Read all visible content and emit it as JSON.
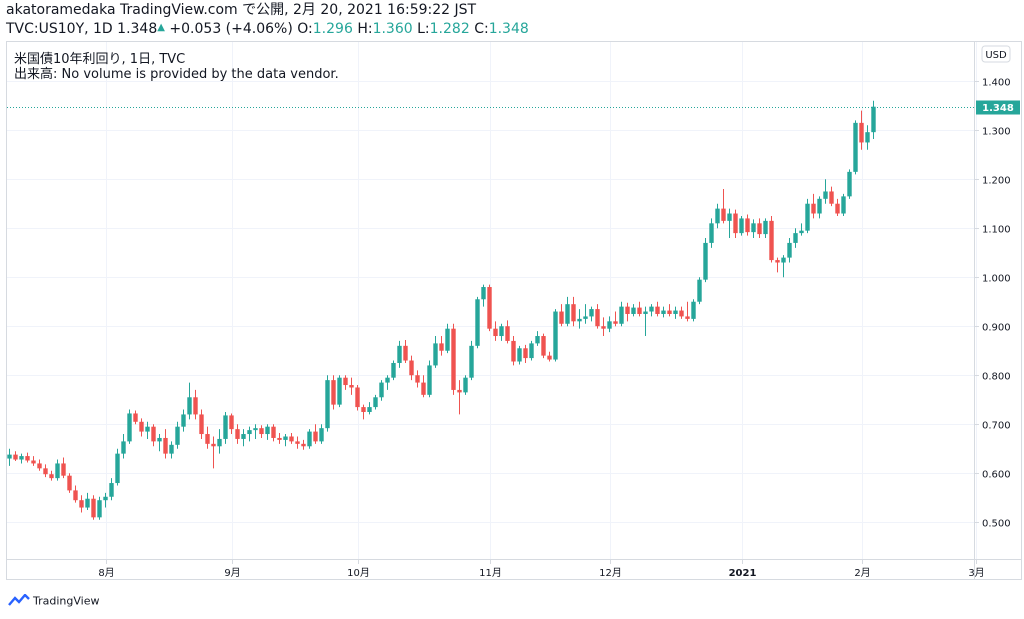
{
  "header": {
    "line1": "akatoramedaka TradingView.com で公開, 2月 20, 2021 16:59:22 JST",
    "symbol": "TVC:US10Y, 1D",
    "last": "1.348",
    "up_arrow": "▲",
    "change": "+0.053 (+4.06%)",
    "o_label": "O:",
    "o": "1.296",
    "h_label": "H:",
    "h": "1.360",
    "l_label": "L:",
    "l": "1.282",
    "c_label": "C:",
    "c": "1.348"
  },
  "legend": {
    "title": "米国債10年利回り, 1日, TVC",
    "volume": "出来高: No volume is provided by the data vendor."
  },
  "currency_button": "USD",
  "price_tag": "1.348",
  "brand": "TradingView",
  "colors": {
    "up": "#26a69a",
    "down": "#ef5350",
    "grid": "#f0f3fa",
    "axis": "#d6dae0"
  },
  "chart_data": {
    "type": "candlestick",
    "y_ticks": [
      "1.400",
      "1.300",
      "1.200",
      "1.100",
      "1.000",
      "0.900",
      "0.800",
      "0.700",
      "0.600",
      "0.500"
    ],
    "ylim": [
      0.425,
      1.48
    ],
    "last_price": 1.348,
    "x_ticks": [
      {
        "label": "8月",
        "idx": 16
      },
      {
        "label": "9月",
        "idx": 37
      },
      {
        "label": "10月",
        "idx": 58
      },
      {
        "label": "11月",
        "idx": 80
      },
      {
        "label": "12月",
        "idx": 100
      },
      {
        "label": "2021",
        "idx": 122,
        "bold": true
      },
      {
        "label": "2月",
        "idx": 142
      },
      {
        "label": "3月",
        "idx": 161
      }
    ],
    "candles": [
      [
        0.63,
        0.65,
        0.615,
        0.638
      ],
      [
        0.638,
        0.645,
        0.625,
        0.628
      ],
      [
        0.628,
        0.64,
        0.62,
        0.635
      ],
      [
        0.635,
        0.642,
        0.622,
        0.626
      ],
      [
        0.626,
        0.635,
        0.615,
        0.62
      ],
      [
        0.62,
        0.628,
        0.605,
        0.61
      ],
      [
        0.61,
        0.618,
        0.592,
        0.598
      ],
      [
        0.598,
        0.605,
        0.585,
        0.59
      ],
      [
        0.59,
        0.628,
        0.585,
        0.62
      ],
      [
        0.62,
        0.632,
        0.59,
        0.595
      ],
      [
        0.595,
        0.6,
        0.56,
        0.565
      ],
      [
        0.565,
        0.575,
        0.54,
        0.545
      ],
      [
        0.545,
        0.555,
        0.52,
        0.53
      ],
      [
        0.53,
        0.56,
        0.525,
        0.548
      ],
      [
        0.548,
        0.555,
        0.505,
        0.51
      ],
      [
        0.51,
        0.552,
        0.505,
        0.545
      ],
      [
        0.545,
        0.56,
        0.53,
        0.552
      ],
      [
        0.552,
        0.59,
        0.545,
        0.58
      ],
      [
        0.58,
        0.65,
        0.575,
        0.64
      ],
      [
        0.64,
        0.68,
        0.63,
        0.665
      ],
      [
        0.665,
        0.73,
        0.66,
        0.722
      ],
      [
        0.722,
        0.728,
        0.7,
        0.705
      ],
      [
        0.705,
        0.712,
        0.675,
        0.685
      ],
      [
        0.685,
        0.705,
        0.67,
        0.695
      ],
      [
        0.695,
        0.7,
        0.655,
        0.665
      ],
      [
        0.665,
        0.68,
        0.645,
        0.672
      ],
      [
        0.672,
        0.69,
        0.63,
        0.64
      ],
      [
        0.64,
        0.665,
        0.63,
        0.658
      ],
      [
        0.658,
        0.705,
        0.65,
        0.695
      ],
      [
        0.695,
        0.73,
        0.685,
        0.72
      ],
      [
        0.72,
        0.785,
        0.71,
        0.755
      ],
      [
        0.755,
        0.77,
        0.71,
        0.72
      ],
      [
        0.72,
        0.73,
        0.67,
        0.68
      ],
      [
        0.68,
        0.695,
        0.65,
        0.66
      ],
      [
        0.66,
        0.675,
        0.61,
        0.655
      ],
      [
        0.655,
        0.69,
        0.64,
        0.67
      ],
      [
        0.67,
        0.725,
        0.66,
        0.718
      ],
      [
        0.718,
        0.722,
        0.68,
        0.69
      ],
      [
        0.69,
        0.7,
        0.66,
        0.67
      ],
      [
        0.67,
        0.69,
        0.655,
        0.68
      ],
      [
        0.68,
        0.695,
        0.665,
        0.688
      ],
      [
        0.688,
        0.7,
        0.67,
        0.692
      ],
      [
        0.692,
        0.698,
        0.672,
        0.68
      ],
      [
        0.68,
        0.7,
        0.668,
        0.695
      ],
      [
        0.695,
        0.7,
        0.665,
        0.672
      ],
      [
        0.672,
        0.682,
        0.66,
        0.668
      ],
      [
        0.668,
        0.68,
        0.655,
        0.675
      ],
      [
        0.675,
        0.682,
        0.66,
        0.665
      ],
      [
        0.665,
        0.675,
        0.65,
        0.66
      ],
      [
        0.66,
        0.668,
        0.648,
        0.655
      ],
      [
        0.655,
        0.69,
        0.65,
        0.685
      ],
      [
        0.685,
        0.7,
        0.66,
        0.665
      ],
      [
        0.665,
        0.7,
        0.66,
        0.692
      ],
      [
        0.692,
        0.8,
        0.685,
        0.79
      ],
      [
        0.79,
        0.8,
        0.73,
        0.74
      ],
      [
        0.74,
        0.8,
        0.735,
        0.795
      ],
      [
        0.795,
        0.8,
        0.77,
        0.78
      ],
      [
        0.78,
        0.795,
        0.76,
        0.775
      ],
      [
        0.775,
        0.78,
        0.728,
        0.735
      ],
      [
        0.735,
        0.74,
        0.71,
        0.725
      ],
      [
        0.725,
        0.745,
        0.72,
        0.735
      ],
      [
        0.735,
        0.76,
        0.73,
        0.755
      ],
      [
        0.755,
        0.79,
        0.748,
        0.785
      ],
      [
        0.785,
        0.8,
        0.77,
        0.795
      ],
      [
        0.795,
        0.83,
        0.79,
        0.825
      ],
      [
        0.825,
        0.87,
        0.815,
        0.86
      ],
      [
        0.86,
        0.872,
        0.825,
        0.83
      ],
      [
        0.83,
        0.84,
        0.79,
        0.8
      ],
      [
        0.8,
        0.81,
        0.775,
        0.785
      ],
      [
        0.785,
        0.8,
        0.755,
        0.76
      ],
      [
        0.76,
        0.83,
        0.755,
        0.82
      ],
      [
        0.82,
        0.88,
        0.815,
        0.865
      ],
      [
        0.865,
        0.88,
        0.84,
        0.85
      ],
      [
        0.85,
        0.905,
        0.845,
        0.895
      ],
      [
        0.895,
        0.905,
        0.76,
        0.77
      ],
      [
        0.77,
        0.79,
        0.72,
        0.765
      ],
      [
        0.765,
        0.8,
        0.76,
        0.795
      ],
      [
        0.795,
        0.87,
        0.79,
        0.86
      ],
      [
        0.86,
        0.96,
        0.855,
        0.955
      ],
      [
        0.955,
        0.985,
        0.94,
        0.98
      ],
      [
        0.98,
        0.985,
        0.89,
        0.895
      ],
      [
        0.895,
        0.91,
        0.87,
        0.88
      ],
      [
        0.88,
        0.905,
        0.87,
        0.9
      ],
      [
        0.9,
        0.912,
        0.865,
        0.87
      ],
      [
        0.87,
        0.88,
        0.82,
        0.828
      ],
      [
        0.828,
        0.86,
        0.822,
        0.855
      ],
      [
        0.855,
        0.862,
        0.825,
        0.835
      ],
      [
        0.835,
        0.87,
        0.83,
        0.865
      ],
      [
        0.865,
        0.89,
        0.86,
        0.88
      ],
      [
        0.88,
        0.885,
        0.835,
        0.84
      ],
      [
        0.84,
        0.848,
        0.828,
        0.832
      ],
      [
        0.832,
        0.935,
        0.828,
        0.93
      ],
      [
        0.93,
        0.945,
        0.9,
        0.905
      ],
      [
        0.905,
        0.96,
        0.9,
        0.945
      ],
      [
        0.945,
        0.96,
        0.9,
        0.91
      ],
      [
        0.91,
        0.935,
        0.895,
        0.915
      ],
      [
        0.915,
        0.945,
        0.905,
        0.92
      ],
      [
        0.92,
        0.94,
        0.91,
        0.935
      ],
      [
        0.935,
        0.945,
        0.895,
        0.9
      ],
      [
        0.9,
        0.918,
        0.88,
        0.895
      ],
      [
        0.895,
        0.92,
        0.888,
        0.91
      ],
      [
        0.91,
        0.93,
        0.9,
        0.905
      ],
      [
        0.905,
        0.95,
        0.9,
        0.94
      ],
      [
        0.94,
        0.948,
        0.91,
        0.925
      ],
      [
        0.925,
        0.945,
        0.92,
        0.938
      ],
      [
        0.938,
        0.95,
        0.92,
        0.925
      ],
      [
        0.925,
        0.94,
        0.88,
        0.93
      ],
      [
        0.93,
        0.945,
        0.92,
        0.94
      ],
      [
        0.94,
        0.95,
        0.92,
        0.925
      ],
      [
        0.925,
        0.94,
        0.918,
        0.932
      ],
      [
        0.932,
        0.945,
        0.92,
        0.925
      ],
      [
        0.925,
        0.94,
        0.915,
        0.932
      ],
      [
        0.932,
        0.94,
        0.915,
        0.92
      ],
      [
        0.92,
        0.95,
        0.91,
        0.915
      ],
      [
        0.915,
        0.955,
        0.91,
        0.95
      ],
      [
        0.95,
        1.0,
        0.945,
        0.995
      ],
      [
        0.995,
        1.08,
        0.99,
        1.07
      ],
      [
        1.07,
        1.12,
        1.06,
        1.11
      ],
      [
        1.11,
        1.15,
        1.1,
        1.14
      ],
      [
        1.14,
        1.18,
        1.11,
        1.115
      ],
      [
        1.115,
        1.14,
        1.08,
        1.13
      ],
      [
        1.13,
        1.138,
        1.08,
        1.09
      ],
      [
        1.09,
        1.125,
        1.085,
        1.12
      ],
      [
        1.12,
        1.128,
        1.085,
        1.092
      ],
      [
        1.092,
        1.118,
        1.08,
        1.11
      ],
      [
        1.11,
        1.12,
        1.08,
        1.088
      ],
      [
        1.088,
        1.12,
        1.08,
        1.115
      ],
      [
        1.115,
        1.125,
        1.03,
        1.035
      ],
      [
        1.035,
        1.04,
        1.01,
        1.03
      ],
      [
        1.03,
        1.045,
        1.0,
        1.04
      ],
      [
        1.04,
        1.08,
        1.03,
        1.07
      ],
      [
        1.07,
        1.1,
        1.06,
        1.09
      ],
      [
        1.09,
        1.11,
        1.085,
        1.095
      ],
      [
        1.095,
        1.16,
        1.09,
        1.15
      ],
      [
        1.15,
        1.17,
        1.12,
        1.13
      ],
      [
        1.13,
        1.165,
        1.12,
        1.16
      ],
      [
        1.16,
        1.2,
        1.15,
        1.175
      ],
      [
        1.175,
        1.185,
        1.145,
        1.15
      ],
      [
        1.15,
        1.16,
        1.125,
        1.13
      ],
      [
        1.13,
        1.17,
        1.125,
        1.165
      ],
      [
        1.165,
        1.22,
        1.16,
        1.215
      ],
      [
        1.215,
        1.32,
        1.21,
        1.315
      ],
      [
        1.315,
        1.34,
        1.26,
        1.275
      ],
      [
        1.275,
        1.31,
        1.26,
        1.296
      ],
      [
        1.296,
        1.36,
        1.282,
        1.348
      ]
    ]
  }
}
